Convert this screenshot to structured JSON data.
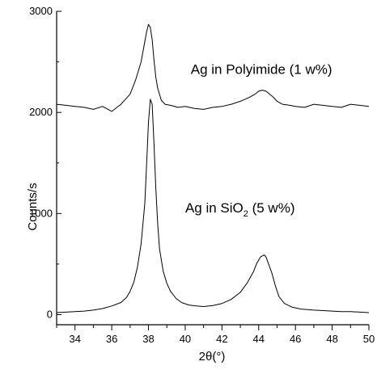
{
  "chart_data": {
    "type": "line",
    "xlabel": "2θ(°)",
    "ylabel": "Counts/s",
    "xlim": [
      33,
      50
    ],
    "ylim": [
      -100,
      3000
    ],
    "x_ticks": [
      "34",
      "36",
      "38",
      "40",
      "42",
      "44",
      "46",
      "48",
      "50"
    ],
    "y_ticks": [
      "0",
      "1000",
      "2000",
      "3000"
    ],
    "x_tick_values": [
      34,
      36,
      38,
      40,
      42,
      44,
      46,
      48,
      50
    ],
    "y_tick_values": [
      0,
      1000,
      2000,
      3000
    ],
    "annotations": [
      {
        "text": "Ag in Polyimide (1 w%)",
        "x": 40.3,
        "y": 2380
      },
      {
        "text_main": "Ag in SiO",
        "subscript": "2",
        "text_tail": " (5 w%)",
        "x": 40.0,
        "y": 1010
      }
    ],
    "series": [
      {
        "x": [
          33.0,
          33.5,
          34.0,
          34.5,
          35.0,
          35.5,
          36.0,
          36.5,
          37.0,
          37.3,
          37.6,
          37.8,
          37.9,
          38.0,
          38.1,
          38.2,
          38.3,
          38.4,
          38.5,
          38.7,
          38.9,
          39.2,
          39.6,
          40.0,
          40.5,
          41.0,
          41.5,
          42.0,
          42.5,
          43.0,
          43.5,
          43.8,
          44.0,
          44.2,
          44.4,
          44.6,
          44.8,
          45.0,
          45.3,
          45.7,
          46.0,
          46.5,
          47.0,
          47.5,
          48.0,
          48.5,
          49.0,
          49.5,
          50.0
        ],
        "y": [
          2080,
          2070,
          2060,
          2050,
          2030,
          2060,
          2010,
          2080,
          2180,
          2320,
          2500,
          2700,
          2800,
          2870,
          2840,
          2720,
          2520,
          2350,
          2240,
          2120,
          2080,
          2070,
          2050,
          2060,
          2040,
          2030,
          2050,
          2060,
          2080,
          2110,
          2150,
          2180,
          2210,
          2220,
          2210,
          2180,
          2150,
          2110,
          2080,
          2070,
          2060,
          2050,
          2080,
          2070,
          2060,
          2050,
          2080,
          2070,
          2060
        ]
      },
      {
        "x": [
          33.0,
          33.5,
          34.0,
          34.5,
          35.0,
          35.5,
          36.0,
          36.5,
          36.8,
          37.0,
          37.2,
          37.4,
          37.6,
          37.8,
          37.9,
          38.0,
          38.1,
          38.2,
          38.3,
          38.4,
          38.5,
          38.6,
          38.8,
          39.0,
          39.2,
          39.5,
          39.8,
          40.2,
          40.6,
          41.0,
          41.5,
          42.0,
          42.5,
          43.0,
          43.4,
          43.7,
          43.9,
          44.1,
          44.3,
          44.4,
          44.5,
          44.7,
          44.9,
          45.1,
          45.4,
          45.8,
          46.3,
          47.0,
          47.5,
          48.0,
          48.5,
          49.0,
          49.5,
          50.0
        ],
        "y": [
          20,
          25,
          30,
          35,
          45,
          60,
          85,
          120,
          170,
          230,
          320,
          470,
          700,
          1100,
          1500,
          1900,
          2130,
          2080,
          1700,
          1250,
          900,
          650,
          430,
          310,
          230,
          160,
          120,
          95,
          85,
          80,
          90,
          110,
          150,
          220,
          320,
          420,
          510,
          570,
          590,
          570,
          520,
          420,
          290,
          180,
          110,
          75,
          55,
          45,
          40,
          35,
          30,
          30,
          25,
          20
        ]
      }
    ]
  }
}
